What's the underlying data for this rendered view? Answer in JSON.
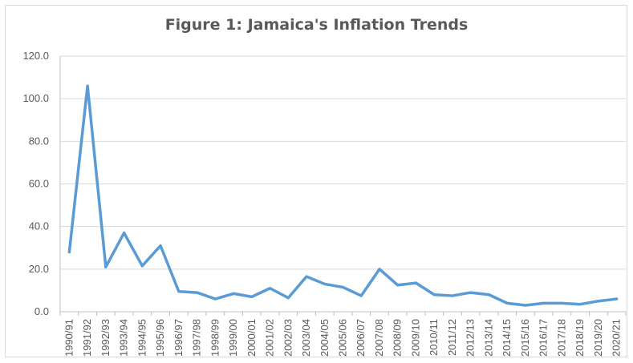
{
  "chart_data": {
    "type": "line",
    "title": "Figure 1: Jamaica's Inflation Trends",
    "xlabel": "",
    "ylabel": "",
    "ylim": [
      0,
      120
    ],
    "yticks": [
      "0.0",
      "20.0",
      "40.0",
      "60.0",
      "80.0",
      "100.0",
      "120.0"
    ],
    "grid": true,
    "legend": "none",
    "categories": [
      "1990/91",
      "1991/92",
      "1992/93",
      "1993/94",
      "1994/95",
      "1995/96",
      "1996/97",
      "1997/98",
      "1998/99",
      "1999/00",
      "2000/01",
      "2001/02",
      "2002/03",
      "2003/04",
      "2004/05",
      "2005/06",
      "2006/07",
      "2007/08",
      "2008/09",
      "2009/10",
      "2010/11",
      "2011/12",
      "2012/13",
      "2013/14",
      "2014/15",
      "2015/16",
      "2016/17",
      "2017/18",
      "2018/19",
      "2019/20",
      "2020/21"
    ],
    "series": [
      {
        "color": "#5b9bd5",
        "values": [
          28.0,
          106.0,
          21.0,
          37.0,
          21.5,
          31.0,
          9.5,
          9.0,
          6.0,
          8.5,
          7.0,
          11.0,
          6.5,
          16.5,
          13.0,
          11.5,
          7.5,
          20.0,
          12.5,
          13.5,
          8.0,
          7.5,
          9.0,
          8.0,
          4.0,
          3.0,
          4.0,
          4.0,
          3.5,
          5.0,
          6.0
        ]
      }
    ]
  }
}
